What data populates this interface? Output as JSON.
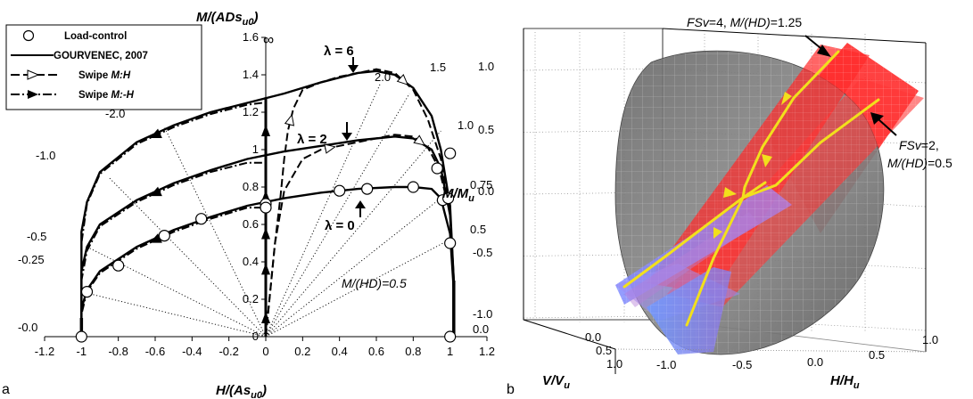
{
  "panel_a": {
    "panel_label": "a",
    "ylabel": "M/(ADs",
    "ylabel_sub": "u0",
    "ylabel_close": ")",
    "xlabel": "H/(As",
    "xlabel_sub": "u0",
    "xlabel_close": ")",
    "infinity_label": "∞",
    "lambda_labels": [
      "λ = 6",
      "λ = 2",
      "λ = 0"
    ],
    "ray_labels": [
      "-0.0",
      "-0.25",
      "-0.5",
      "-1.0",
      "-2.0",
      "2.0",
      "1.5",
      "1.0",
      "0.75",
      "0.5",
      "0.0"
    ],
    "mhd_label": "M/(HD)=0.5",
    "legend": {
      "load_control": "Load-control",
      "gourvenec": "GOURVENEC, 2007",
      "swipe_mh": "Swipe ",
      "swipe_mh_italic": "M:H",
      "swipe_mmh": "Swipe ",
      "swipe_mmh_italic": "M:-H"
    }
  },
  "panel_b": {
    "panel_label": "b",
    "zlabel": "M/M",
    "zlabel_sub": "u",
    "xlabel": "H/H",
    "xlabel_sub": "u",
    "vlabel": "V/V",
    "vlabel_sub": "u",
    "z_ticks": [
      "1.0",
      "0.5",
      "0.0",
      "-0.5",
      "-1.0"
    ],
    "h_ticks": [
      "-1.0",
      "-0.5",
      "0.0",
      "0.5",
      "1.0"
    ],
    "v_ticks": [
      "0.0",
      "0.5",
      "1.0"
    ],
    "annot_fsv4_a": "FSv",
    "annot_fsv4_b": "=4, ",
    "annot_fsv4_c": "M/(HD)",
    "annot_fsv4_d": "=1.25",
    "annot_fsv2_a": "FSv",
    "annot_fsv2_b": "=2,",
    "annot_fsv2_c": "M/(HD)",
    "annot_fsv2_d": "=0.5"
  },
  "chart_data": [
    {
      "type": "line",
      "xlabel": "H/(As_u0)",
      "ylabel": "M/(ADs_u0)",
      "xlim": [
        -1.2,
        1.2
      ],
      "ylim": [
        0,
        1.6
      ],
      "x_ticks": [
        -1.2,
        -1.0,
        -0.8,
        -0.6,
        -0.4,
        -0.2,
        0,
        0.2,
        0.4,
        0.6,
        0.8,
        1.0,
        1.2
      ],
      "y_ticks": [
        0,
        0.2,
        0.4,
        0.6,
        0.8,
        1.0,
        1.2,
        1.4,
        1.6
      ],
      "x_tick_labels": [
        "-1.2",
        "-1",
        "-0.8",
        "-0.6",
        "-0.4",
        "-0.2",
        "0",
        "0.2",
        "0.4",
        "0.6",
        "0.8",
        "1",
        "1.2"
      ],
      "y_tick_labels": [
        "0",
        "0.2",
        "0.4",
        "0.6",
        "0.8",
        "1",
        "1.2",
        "1.4",
        "1.6"
      ],
      "series": [
        {
          "name": "GOURVENEC, 2007",
          "group": "λ = 6",
          "x": [
            -1.0,
            -1.0,
            -0.97,
            -0.9,
            -0.7,
            -0.5,
            -0.3,
            -0.1,
            0.1,
            0.3,
            0.5,
            0.6,
            0.7,
            0.8,
            0.9,
            0.95,
            1.0,
            1.02,
            1.02
          ],
          "y": [
            0,
            0.56,
            0.72,
            0.88,
            1.04,
            1.13,
            1.2,
            1.25,
            1.3,
            1.36,
            1.41,
            1.42,
            1.4,
            1.33,
            1.18,
            1.0,
            0.7,
            0.3,
            0
          ]
        },
        {
          "name": "GOURVENEC, 2007",
          "group": "λ = 2",
          "x": [
            -1.0,
            -1.0,
            -0.97,
            -0.9,
            -0.7,
            -0.5,
            -0.3,
            -0.1,
            0.1,
            0.3,
            0.5,
            0.7,
            0.8,
            0.9,
            0.95,
            1.0,
            1.02,
            1.02
          ],
          "y": [
            0,
            0.35,
            0.48,
            0.6,
            0.73,
            0.82,
            0.89,
            0.95,
            0.99,
            1.02,
            1.05,
            1.07,
            1.06,
            1.0,
            0.9,
            0.65,
            0.3,
            0
          ]
        },
        {
          "name": "GOURVENEC, 2007",
          "group": "λ = 0",
          "x": [
            -1.0,
            -1.0,
            -0.97,
            -0.9,
            -0.7,
            -0.5,
            -0.3,
            -0.1,
            0.1,
            0.3,
            0.5,
            0.7,
            0.8,
            0.9,
            0.95,
            1.0,
            1.02,
            1.02
          ],
          "y": [
            0,
            0.15,
            0.25,
            0.35,
            0.48,
            0.57,
            0.64,
            0.7,
            0.74,
            0.77,
            0.79,
            0.8,
            0.8,
            0.79,
            0.74,
            0.55,
            0.25,
            0
          ]
        },
        {
          "name": "Swipe M:H",
          "group": "λ = 6",
          "x": [
            0.0,
            0.03,
            0.05,
            0.08,
            0.1,
            0.12,
            0.15,
            0.2,
            0.3,
            0.4,
            0.5,
            0.6,
            0.7,
            0.8,
            0.88,
            0.95,
            1.0
          ],
          "y": [
            0,
            0.3,
            0.5,
            0.75,
            0.95,
            1.1,
            1.22,
            1.32,
            1.36,
            1.39,
            1.41,
            1.43,
            1.41,
            1.32,
            1.16,
            0.95,
            0.7
          ]
        },
        {
          "name": "Swipe M:H",
          "group": "λ = 2",
          "x": [
            0.0,
            0.05,
            0.1,
            0.2,
            0.3,
            0.4,
            0.5,
            0.6,
            0.7,
            0.8,
            0.88,
            0.94,
            1.0
          ],
          "y": [
            0,
            0.5,
            0.78,
            0.95,
            1.0,
            1.02,
            1.04,
            1.06,
            1.08,
            1.07,
            1.01,
            0.9,
            0.66
          ]
        },
        {
          "name": "Swipe M:-H",
          "group": "λ = 6",
          "x": [
            -0.02,
            -0.1,
            -0.3,
            -0.5,
            -0.7,
            -0.9,
            -0.97,
            -1.0
          ],
          "y": [
            1.25,
            1.24,
            1.19,
            1.12,
            1.03,
            0.87,
            0.71,
            0.5
          ]
        },
        {
          "name": "Swipe M:-H",
          "group": "λ = 2",
          "x": [
            -0.02,
            -0.1,
            -0.3,
            -0.5,
            -0.7,
            -0.9,
            -0.97,
            -1.0
          ],
          "y": [
            0.93,
            0.93,
            0.88,
            0.81,
            0.72,
            0.59,
            0.46,
            0.3
          ]
        },
        {
          "name": "Swipe M:-H",
          "group": "λ = 0",
          "x": [
            -0.02,
            -0.1,
            -0.3,
            -0.5,
            -0.7,
            -0.9,
            -0.97,
            -1.0
          ],
          "y": [
            0.69,
            0.69,
            0.63,
            0.56,
            0.47,
            0.34,
            0.24,
            0.12
          ]
        },
        {
          "name": "Load-control",
          "x": [
            -1.0,
            -0.97,
            -0.8,
            -0.55,
            -0.35,
            0.0,
            0.0,
            0.4,
            0.55,
            0.8,
            0.93,
            0.96,
            0.99,
            1.0,
            1.0,
            1.0
          ],
          "y": [
            0.0,
            0.24,
            0.38,
            0.54,
            0.63,
            0.71,
            0.69,
            0.78,
            0.79,
            0.8,
            0.9,
            0.73,
            0.74,
            0.98,
            0.5,
            0.0
          ]
        }
      ],
      "vertical_swipe_H0": {
        "x": [
          0,
          0,
          0,
          0,
          0
        ],
        "y": [
          0.1,
          0.36,
          0.55,
          0.75,
          1.1
        ]
      }
    },
    {
      "type": "surface",
      "xlabel": "H/H_u",
      "ylabel": "V/V_u",
      "zlabel": "M/M_u",
      "xlim": [
        -1.0,
        1.0
      ],
      "ylim": [
        0.0,
        1.0
      ],
      "zlim": [
        -1.0,
        1.0
      ],
      "x_ticks": [
        -1.0,
        -0.5,
        0.0,
        0.5,
        1.0
      ],
      "y_ticks": [
        0.0,
        0.5,
        1.0
      ],
      "z_ticks": [
        -1.0,
        -0.5,
        0.0,
        0.5,
        1.0
      ],
      "planes": [
        {
          "FSv": 4,
          "M/(HD)": 1.25
        },
        {
          "FSv": 2,
          "M/(HD)": 0.5
        }
      ]
    }
  ]
}
